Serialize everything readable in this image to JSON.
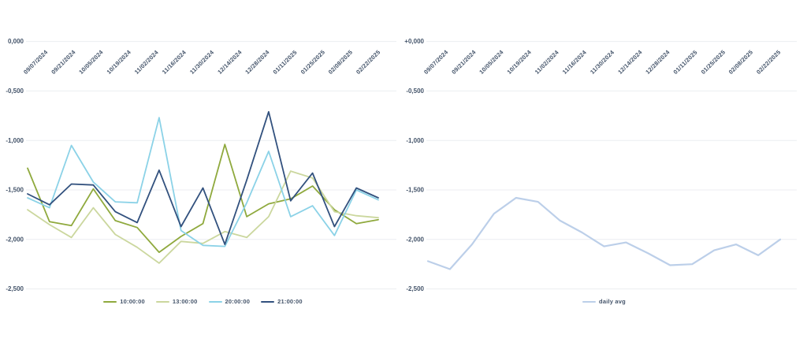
{
  "colors": {
    "axis_text": "#44546a",
    "gridline": "#eceef1",
    "background": "#ffffff"
  },
  "chart_data": [
    {
      "type": "line",
      "position": "left",
      "title": "",
      "xlabel": "",
      "ylabel": "",
      "ylim": [
        -2.5,
        0
      ],
      "grid": true,
      "legend_position": "bottom",
      "x_tick_labels": [
        "09/07/2024",
        "09/21/2024",
        "10/05/2024",
        "10/19/2024",
        "11/02/2024",
        "11/16/2024",
        "11/30/2024",
        "12/14/2024",
        "12/28/2024",
        "01/11/2025",
        "01/25/2025",
        "02/08/2025",
        "02/22/2025"
      ],
      "y_tick_labels": [
        "0,000",
        "-0,500",
        "-1,000",
        "-1,500",
        "-2,000",
        "-2,500"
      ],
      "series": [
        {
          "name": "10:00:00",
          "color": "#8fa93d",
          "values": [
            -1.28,
            -1.82,
            -1.86,
            -1.49,
            -1.81,
            -1.88,
            -2.13,
            -1.97,
            -1.84,
            -1.04,
            -1.77,
            -1.64,
            -1.59,
            -1.46,
            -1.7,
            -1.84,
            -1.8
          ]
        },
        {
          "name": "13:00:00",
          "color": "#cbd79e",
          "values": [
            -1.7,
            -1.85,
            -1.98,
            -1.68,
            -1.95,
            -2.08,
            -2.24,
            -2.02,
            -2.04,
            -1.92,
            -1.98,
            -1.77,
            -1.31,
            -1.38,
            -1.72,
            -1.76,
            -1.78
          ]
        },
        {
          "name": "20:00:00",
          "color": "#8bd2e7",
          "values": [
            -1.58,
            -1.68,
            -1.05,
            -1.42,
            -1.62,
            -1.63,
            -0.77,
            -1.91,
            -2.06,
            -2.07,
            -1.63,
            -1.11,
            -1.77,
            -1.66,
            -1.96,
            -1.5,
            -1.6
          ]
        },
        {
          "name": "21:00:00",
          "color": "#32517e",
          "values": [
            -1.54,
            -1.65,
            -1.44,
            -1.45,
            -1.72,
            -1.83,
            -1.3,
            -1.87,
            -1.48,
            -2.05,
            -1.4,
            -0.71,
            -1.61,
            -1.33,
            -1.87,
            -1.48,
            -1.58
          ]
        }
      ]
    },
    {
      "type": "line",
      "position": "right",
      "title": "",
      "xlabel": "",
      "ylabel": "",
      "ylim": [
        -2.5,
        0
      ],
      "grid": true,
      "legend_position": "bottom",
      "x_tick_labels": [
        "09/07/2024",
        "09/21/2024",
        "10/05/2024",
        "10/19/2024",
        "11/02/2024",
        "11/16/2024",
        "11/30/2024",
        "12/14/2024",
        "12/28/2024",
        "01/11/2025",
        "01/25/2025",
        "02/08/2025",
        "02/22/2025"
      ],
      "y_tick_labels": [
        "+0,000",
        "-0,500",
        "-1,000",
        "-1,500",
        "-2,000",
        "-2,500"
      ],
      "series": [
        {
          "name": "daily avg",
          "color": "#bccfe9",
          "values": [
            -2.22,
            -2.3,
            -2.05,
            -1.74,
            -1.58,
            -1.62,
            -1.81,
            -1.93,
            -2.07,
            -2.03,
            -2.14,
            -2.26,
            -2.25,
            -2.11,
            -2.05,
            -2.16,
            -2.0
          ]
        }
      ]
    }
  ]
}
